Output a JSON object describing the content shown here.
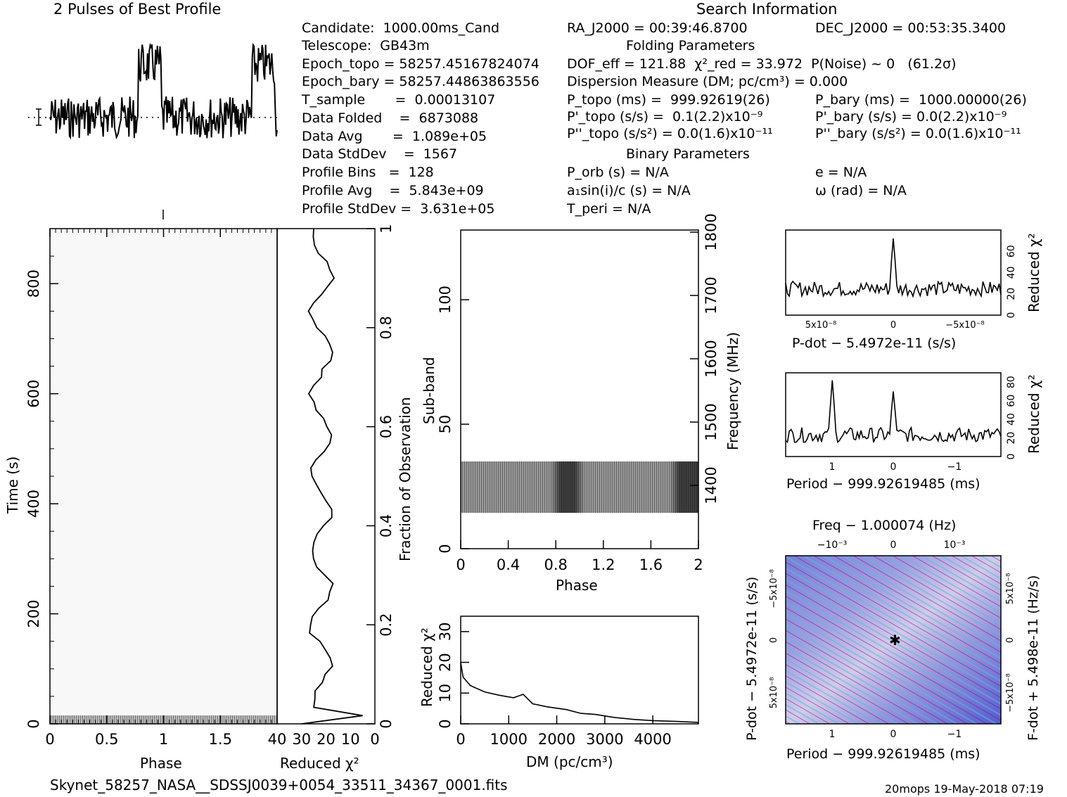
{
  "titles": {
    "profile_title": "2 Pulses of Best Profile",
    "search_info": "Search Information",
    "folding_params": "Folding Parameters",
    "binary_params": "Binary Parameters"
  },
  "info": {
    "candidate": "Candidate:  1000.00ms_Cand",
    "telescope": "Telescope:  GB43m",
    "epoch_topo": "Epoch_topo = 58257.45167824074",
    "epoch_bary": "Epoch_bary = 58257.44863863556",
    "t_sample": "T_sample       =  0.00013107",
    "data_folded": "Data Folded    =  6873088",
    "data_avg": "Data Avg       =  1.089e+05",
    "data_stddev": "Data StdDev    =  1567",
    "profile_bins": "Profile Bins   =  128",
    "profile_avg": "Profile Avg    =  5.843e+09",
    "profile_stddev": "Profile StdDev =  3.631e+05",
    "ra": "RA_J2000 = 00:39:46.8700",
    "dec": "DEC_J2000 = 00:53:35.3400",
    "dof": "DOF_eff = 121.88  χ²_red = 33.972  P(Noise) ~ 0   (61.2σ)",
    "dm": "Dispersion Measure (DM; pc/cm³) = 0.000",
    "p_topo": "P_topo (ms) =  999.92619(26)",
    "p_bary": "P_bary (ms) =  1000.00000(26)",
    "pd_topo": "P'_topo (s/s) =  0.1(2.2)x10⁻⁹",
    "pd_bary": "P'_bary (s/s) = 0.0(2.2)x10⁻⁹",
    "pdd_topo": "P''_topo (s/s²) = 0.0(1.6)x10⁻¹¹",
    "pdd_bary": "P''_bary (s/s²) = 0.0(1.6)x10⁻¹¹",
    "p_orb": "P_orb (s) = N/A",
    "e": "e = N/A",
    "a1sini": "a₁sin(i)/c (s) = N/A",
    "omega": "ω (rad) = N/A",
    "t_peri": "T_peri = N/A"
  },
  "footer": {
    "filename": "Skynet_58257_NASA__SDSSJ0039+0054_33511_34367_0001.fits",
    "stamp": "20mops 19-May-2018 07:19"
  },
  "chart_data": [
    {
      "type": "line",
      "title": "2 Pulses of Best Profile",
      "x": "phase 0–2 (two pulses)",
      "description_values": {
        "bins_per_pulse": 128,
        "peak_phase": [
          0.85,
          1.85
        ]
      }
    },
    {
      "type": "heatmap",
      "xlabel": "Phase",
      "ylabel": "Time (s)",
      "xlim": [
        0,
        2
      ],
      "ylim": [
        0,
        900
      ],
      "xticks": [
        "0",
        "0.5",
        "1",
        "1.5"
      ],
      "yticks": [
        "0",
        "200",
        "400",
        "600",
        "800"
      ]
    },
    {
      "type": "line",
      "xlabel": "Reduced χ²",
      "ylabel": "Fraction of Observation",
      "xticks": [
        "40",
        "30",
        "20",
        "10",
        "0"
      ],
      "yticks": [
        "0",
        "0.2",
        "0.4",
        "0.6",
        "0.8",
        "1"
      ]
    },
    {
      "type": "heatmap",
      "xlabel": "Phase",
      "ylabel": "Sub-band",
      "ylabel_right": "Frequency (MHz)",
      "xticks": [
        "0",
        "0.4",
        "0.8",
        "1.2",
        "1.6",
        "2"
      ],
      "yticks": [
        "0",
        "50",
        "100"
      ],
      "yticks_right": [
        "1400",
        "1500",
        "1600",
        "1700",
        "1800"
      ]
    },
    {
      "type": "line",
      "xlabel": "DM (pc/cm³)",
      "ylabel": "Reduced χ²",
      "xticks": [
        "0",
        "1000",
        "2000",
        "3000",
        "4000"
      ],
      "yticks": [
        "0",
        "10",
        "20",
        "30"
      ],
      "x": [
        0,
        50,
        200,
        500,
        800,
        1100,
        1300,
        1500,
        1800,
        2200,
        2500,
        2800,
        3200,
        3600,
        4000,
        4500,
        4950
      ],
      "y": [
        20,
        15,
        12.5,
        10.5,
        9.3,
        8.2,
        8,
        6.5,
        5.5,
        4.3,
        3.5,
        2.8,
        1.8,
        1.3,
        1.0,
        0.9,
        0.8
      ]
    },
    {
      "type": "line",
      "xlabel": "P-dot − 5.4972e-11 (s/s)",
      "ylabel": "Reduced χ²",
      "xticks": [
        "5x10⁻⁸",
        "0",
        "−5x10⁻⁸"
      ],
      "yticks": [
        "0",
        "20",
        "40",
        "60"
      ]
    },
    {
      "type": "line",
      "xlabel": "Period − 999.92619485 (ms)",
      "ylabel": "Reduced χ²",
      "xticks": [
        "1",
        "0",
        "−1"
      ],
      "yticks": [
        "0",
        "20",
        "40",
        "60",
        "80"
      ]
    },
    {
      "type": "heatmap",
      "title": "Freq − 1.000074 (Hz)",
      "xlabel": "Period − 999.92619485 (ms)",
      "ylabel": "P-dot − 5.4972e-11 (s/s)",
      "ylabel_right": "F-dot + 5.498e-11 (Hz/s)",
      "xticks": [
        "1",
        "0",
        "−1"
      ],
      "xticks_top": [
        "−10⁻³",
        "0",
        "10⁻³"
      ],
      "yticks": [
        "−5x10⁻⁸",
        "0",
        "5x10⁻⁸"
      ],
      "yticks_right": [
        "5x10⁻⁸",
        "0",
        "−5x10⁻⁸"
      ]
    }
  ]
}
